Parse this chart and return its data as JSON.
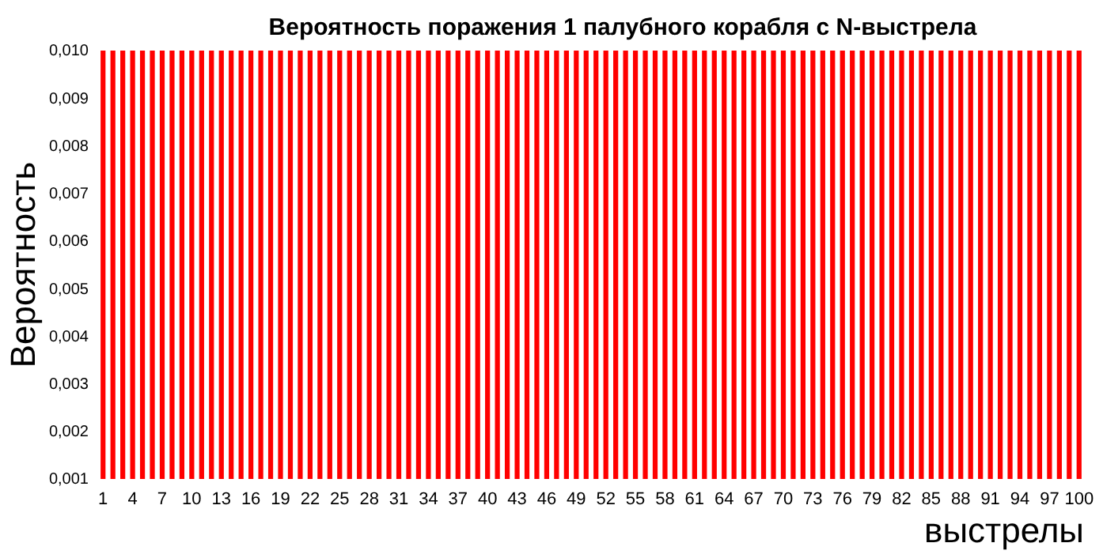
{
  "chart_data": {
    "type": "bar",
    "title": "Вероятность поражения 1 палубного корабля с N-выстрела",
    "xlabel": "выстрелы",
    "ylabel": "Вероятность",
    "categories": [
      "1",
      null,
      null,
      "4",
      null,
      null,
      "7",
      null,
      null,
      "10",
      null,
      null,
      "13",
      null,
      null,
      "16",
      null,
      null,
      "19",
      null,
      null,
      "22",
      null,
      null,
      "25",
      null,
      null,
      "28",
      null,
      null,
      "31",
      null,
      null,
      "34",
      null,
      null,
      "37",
      null,
      null,
      "40",
      null,
      null,
      "43",
      null,
      null,
      "46",
      null,
      null,
      "49",
      null,
      null,
      "52",
      null,
      null,
      "55",
      null,
      null,
      "58",
      null,
      null,
      "61",
      null,
      null,
      "64",
      null,
      null,
      "67",
      null,
      null,
      "70",
      null,
      null,
      "73",
      null,
      null,
      "76",
      null,
      null,
      "79",
      null,
      null,
      "82",
      null,
      null,
      "85",
      null,
      null,
      "88",
      null,
      null,
      "91",
      null,
      null,
      "94",
      null,
      null,
      "97",
      null,
      null,
      "100"
    ],
    "values": [
      0.01,
      0.01,
      0.01,
      0.01,
      0.01,
      0.01,
      0.01,
      0.01,
      0.01,
      0.01,
      0.01,
      0.01,
      0.01,
      0.01,
      0.01,
      0.01,
      0.01,
      0.01,
      0.01,
      0.01,
      0.01,
      0.01,
      0.01,
      0.01,
      0.01,
      0.01,
      0.01,
      0.01,
      0.01,
      0.01,
      0.01,
      0.01,
      0.01,
      0.01,
      0.01,
      0.01,
      0.01,
      0.01,
      0.01,
      0.01,
      0.01,
      0.01,
      0.01,
      0.01,
      0.01,
      0.01,
      0.01,
      0.01,
      0.01,
      0.01,
      0.01,
      0.01,
      0.01,
      0.01,
      0.01,
      0.01,
      0.01,
      0.01,
      0.01,
      0.01,
      0.01,
      0.01,
      0.01,
      0.01,
      0.01,
      0.01,
      0.01,
      0.01,
      0.01,
      0.01,
      0.01,
      0.01,
      0.01,
      0.01,
      0.01,
      0.01,
      0.01,
      0.01,
      0.01,
      0.01,
      0.01,
      0.01,
      0.01,
      0.01,
      0.01,
      0.01,
      0.01,
      0.01,
      0.01,
      0.01,
      0.01,
      0.01,
      0.01,
      0.01,
      0.01,
      0.01,
      0.01,
      0.01,
      0.01,
      0.01
    ],
    "color": "#ff0000",
    "ylim": [
      0.001,
      0.01
    ],
    "yticks": [
      {
        "value": 0.001,
        "label": "0,001"
      },
      {
        "value": 0.002,
        "label": "0,002"
      },
      {
        "value": 0.003,
        "label": "0,003"
      },
      {
        "value": 0.004,
        "label": "0,004"
      },
      {
        "value": 0.005,
        "label": "0,005"
      },
      {
        "value": 0.006,
        "label": "0,006"
      },
      {
        "value": 0.007,
        "label": "0,007"
      },
      {
        "value": 0.008,
        "label": "0,008"
      },
      {
        "value": 0.009,
        "label": "0,009"
      },
      {
        "value": 0.01,
        "label": "0,010"
      }
    ]
  }
}
